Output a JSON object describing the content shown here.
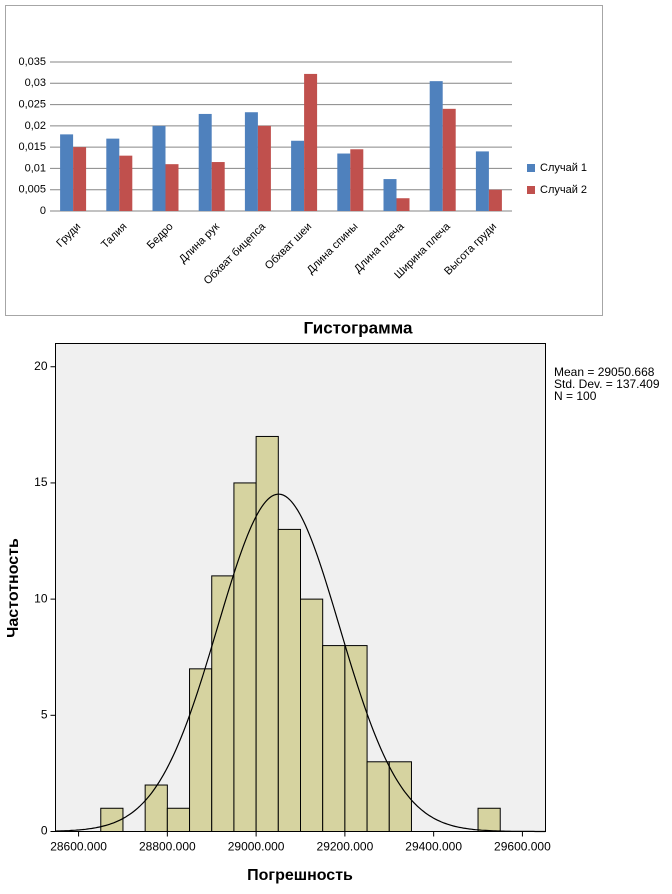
{
  "chart_data": [
    {
      "type": "bar",
      "categories": [
        "Груди",
        "Талия",
        "Бедро",
        "Длина рук",
        "Обхват бицепса",
        "Обхват шеи",
        "Длина спины",
        "Длина плеча",
        "Ширина плеча",
        "Высота груди"
      ],
      "series": [
        {
          "name": "Случай 1",
          "color": "#4f81bd",
          "values": [
            0.018,
            0.017,
            0.02,
            0.0228,
            0.0232,
            0.0165,
            0.0135,
            0.0075,
            0.0305,
            0.014
          ]
        },
        {
          "name": "Случай 2",
          "color": "#c0504d",
          "values": [
            0.015,
            0.013,
            0.011,
            0.0115,
            0.02,
            0.0322,
            0.0145,
            0.003,
            0.024,
            0.005
          ]
        }
      ],
      "ylim": [
        0,
        0.035
      ],
      "yticks": [
        0,
        {
          "value": 0.005,
          "label": "0,005"
        },
        {
          "value": 0.01,
          "label": "0,01"
        },
        {
          "value": 0.015,
          "label": "0,015"
        },
        {
          "value": 0.02,
          "label": "0,02"
        },
        {
          "value": 0.025,
          "label": "0,025"
        },
        {
          "value": 0.03,
          "label": "0,03"
        },
        {
          "value": 0.035,
          "label": "0,035"
        }
      ],
      "grid": true,
      "legend": "right"
    },
    {
      "type": "histogram",
      "title": "Гистограмма",
      "xlabel": "Погрешность",
      "ylabel": "Частотность",
      "bins": [
        28650,
        28700,
        28750,
        28800,
        28850,
        28900,
        28950,
        29000,
        29050,
        29100,
        29150,
        29200,
        29250,
        29300,
        29350,
        29400,
        29450,
        29500,
        29550
      ],
      "values": [
        1,
        0,
        2,
        1,
        7,
        11,
        15,
        17,
        13,
        10,
        8,
        8,
        3,
        3,
        0,
        0,
        0,
        1
      ],
      "color": "#d6d3a0",
      "xlim": [
        28548,
        29652
      ],
      "ylim": [
        0,
        21
      ],
      "xticks": [
        {
          "value": 28600,
          "label": "28600.000"
        },
        {
          "value": 28800,
          "label": "28800.000"
        },
        {
          "value": 29000,
          "label": "29000.000"
        },
        {
          "value": 29200,
          "label": "29200.000"
        },
        {
          "value": 29400,
          "label": "29400.000"
        },
        {
          "value": 29600,
          "label": "29600.000"
        }
      ],
      "yticks": [
        0,
        5,
        10,
        15,
        20
      ],
      "stats": [
        {
          "value": 29050.668,
          "label": "Mean = 29050.668"
        },
        {
          "value": 137.409,
          "label": "Std. Dev. = 137.409"
        },
        {
          "value": 100,
          "label": "N = 100"
        }
      ]
    }
  ]
}
